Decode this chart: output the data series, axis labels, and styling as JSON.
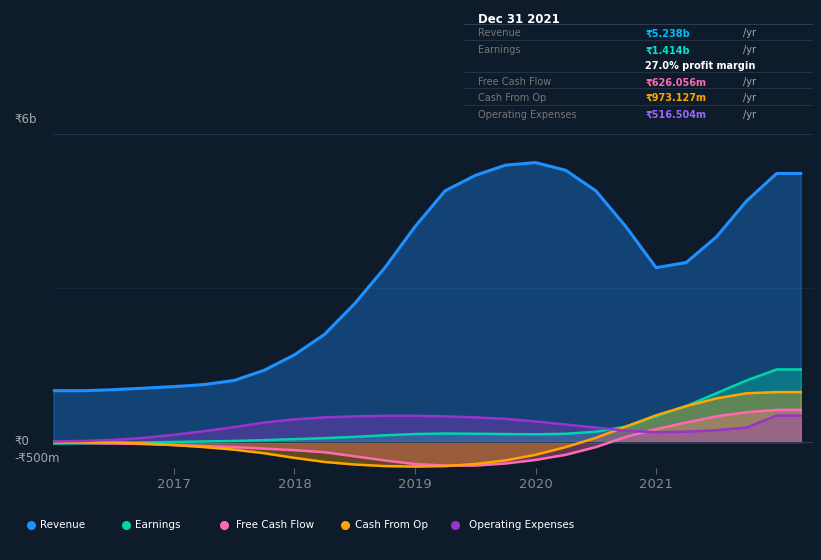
{
  "bg_color": "#0d1b2a",
  "plot_bg_color": "#0d1b2a",
  "title_box": {
    "date": "Dec 31 2021",
    "rows": [
      {
        "label": "Revenue",
        "value": "₹5.238b",
        "unit": "/yr",
        "value_color": "#00bfff",
        "profit_margin": null
      },
      {
        "label": "Earnings",
        "value": "₹1.414b",
        "unit": "/yr",
        "value_color": "#00e5cc",
        "profit_margin": "27.0%"
      },
      {
        "label": "Free Cash Flow",
        "value": "₹626.056m",
        "unit": "/yr",
        "value_color": "#ff69b4",
        "profit_margin": null
      },
      {
        "label": "Cash From Op",
        "value": "₹973.127m",
        "unit": "/yr",
        "value_color": "#ffa500",
        "profit_margin": null
      },
      {
        "label": "Operating Expenses",
        "value": "₹516.504m",
        "unit": "/yr",
        "value_color": "#9966ff",
        "profit_margin": null
      }
    ]
  },
  "ylim": [
    -500000000,
    6000000000
  ],
  "ytick_labels": [
    "₹0",
    "₹6b"
  ],
  "ytick_neg_label": "-₹500m",
  "xmin": 2016.0,
  "xmax": 2022.3,
  "xticks": [
    2017,
    2018,
    2019,
    2020,
    2021
  ],
  "series": {
    "revenue": {
      "color": "#1e90ff",
      "lw": 2.2,
      "x": [
        2016.0,
        2016.25,
        2016.5,
        2016.75,
        2017.0,
        2017.25,
        2017.5,
        2017.75,
        2018.0,
        2018.25,
        2018.5,
        2018.75,
        2019.0,
        2019.25,
        2019.5,
        2019.75,
        2020.0,
        2020.25,
        2020.5,
        2020.75,
        2021.0,
        2021.25,
        2021.5,
        2021.75,
        2022.0,
        2022.2
      ],
      "y": [
        1000000000,
        1000000000,
        1020000000,
        1050000000,
        1080000000,
        1120000000,
        1200000000,
        1400000000,
        1700000000,
        2100000000,
        2700000000,
        3400000000,
        4200000000,
        4900000000,
        5200000000,
        5400000000,
        5450000000,
        5300000000,
        4900000000,
        4200000000,
        3400000000,
        3500000000,
        4000000000,
        4700000000,
        5238000000,
        5238000000
      ]
    },
    "earnings": {
      "color": "#00d4aa",
      "lw": 1.8,
      "x": [
        2016.0,
        2016.25,
        2016.5,
        2016.75,
        2017.0,
        2017.25,
        2017.5,
        2017.75,
        2018.0,
        2018.25,
        2018.5,
        2018.75,
        2019.0,
        2019.25,
        2019.5,
        2019.75,
        2020.0,
        2020.25,
        2020.5,
        2020.75,
        2021.0,
        2021.25,
        2021.5,
        2021.75,
        2022.0,
        2022.2
      ],
      "y": [
        -30000000,
        -25000000,
        -20000000,
        -10000000,
        0,
        10000000,
        20000000,
        35000000,
        55000000,
        75000000,
        100000000,
        130000000,
        155000000,
        165000000,
        160000000,
        155000000,
        150000000,
        160000000,
        200000000,
        300000000,
        500000000,
        700000000,
        950000000,
        1200000000,
        1414000000,
        1414000000
      ]
    },
    "free_cash_flow": {
      "color": "#ff69b4",
      "lw": 1.8,
      "x": [
        2016.0,
        2016.25,
        2016.5,
        2016.75,
        2017.0,
        2017.25,
        2017.5,
        2017.75,
        2018.0,
        2018.25,
        2018.5,
        2018.75,
        2019.0,
        2019.25,
        2019.5,
        2019.75,
        2020.0,
        2020.25,
        2020.5,
        2020.75,
        2021.0,
        2021.25,
        2021.5,
        2021.75,
        2022.0,
        2022.2
      ],
      "y": [
        -10000000,
        -20000000,
        -30000000,
        -40000000,
        -60000000,
        -80000000,
        -100000000,
        -130000000,
        -160000000,
        -200000000,
        -280000000,
        -360000000,
        -430000000,
        -460000000,
        -460000000,
        -420000000,
        -350000000,
        -250000000,
        -100000000,
        100000000,
        250000000,
        380000000,
        500000000,
        580000000,
        626056000,
        626056000
      ]
    },
    "cash_from_op": {
      "color": "#ffa500",
      "lw": 1.8,
      "x": [
        2016.0,
        2016.25,
        2016.5,
        2016.75,
        2017.0,
        2017.25,
        2017.5,
        2017.75,
        2018.0,
        2018.25,
        2018.5,
        2018.75,
        2019.0,
        2019.25,
        2019.5,
        2019.75,
        2020.0,
        2020.25,
        2020.5,
        2020.75,
        2021.0,
        2021.25,
        2021.5,
        2021.75,
        2022.0,
        2022.2
      ],
      "y": [
        5000000,
        0,
        -10000000,
        -30000000,
        -60000000,
        -100000000,
        -150000000,
        -220000000,
        -310000000,
        -390000000,
        -440000000,
        -470000000,
        -480000000,
        -470000000,
        -430000000,
        -360000000,
        -250000000,
        -100000000,
        80000000,
        300000000,
        520000000,
        700000000,
        850000000,
        950000000,
        973127000,
        973127000
      ]
    },
    "operating_expenses": {
      "color": "#9933cc",
      "lw": 1.8,
      "x": [
        2016.0,
        2016.25,
        2016.5,
        2016.75,
        2017.0,
        2017.25,
        2017.5,
        2017.75,
        2018.0,
        2018.25,
        2018.5,
        2018.75,
        2019.0,
        2019.25,
        2019.5,
        2019.75,
        2020.0,
        2020.25,
        2020.5,
        2020.75,
        2021.0,
        2021.25,
        2021.5,
        2021.75,
        2022.0,
        2022.2
      ],
      "y": [
        10000000,
        20000000,
        40000000,
        80000000,
        140000000,
        210000000,
        290000000,
        380000000,
        440000000,
        480000000,
        500000000,
        510000000,
        510000000,
        500000000,
        480000000,
        450000000,
        400000000,
        340000000,
        280000000,
        220000000,
        190000000,
        200000000,
        230000000,
        280000000,
        516504000,
        516504000
      ]
    }
  },
  "fill_alpha": 0.35,
  "legend": [
    {
      "label": "Revenue",
      "color": "#1e90ff"
    },
    {
      "label": "Earnings",
      "color": "#00d4aa"
    },
    {
      "label": "Free Cash Flow",
      "color": "#ff69b4"
    },
    {
      "label": "Cash From Op",
      "color": "#ffa500"
    },
    {
      "label": "Operating Expenses",
      "color": "#9933cc"
    }
  ]
}
